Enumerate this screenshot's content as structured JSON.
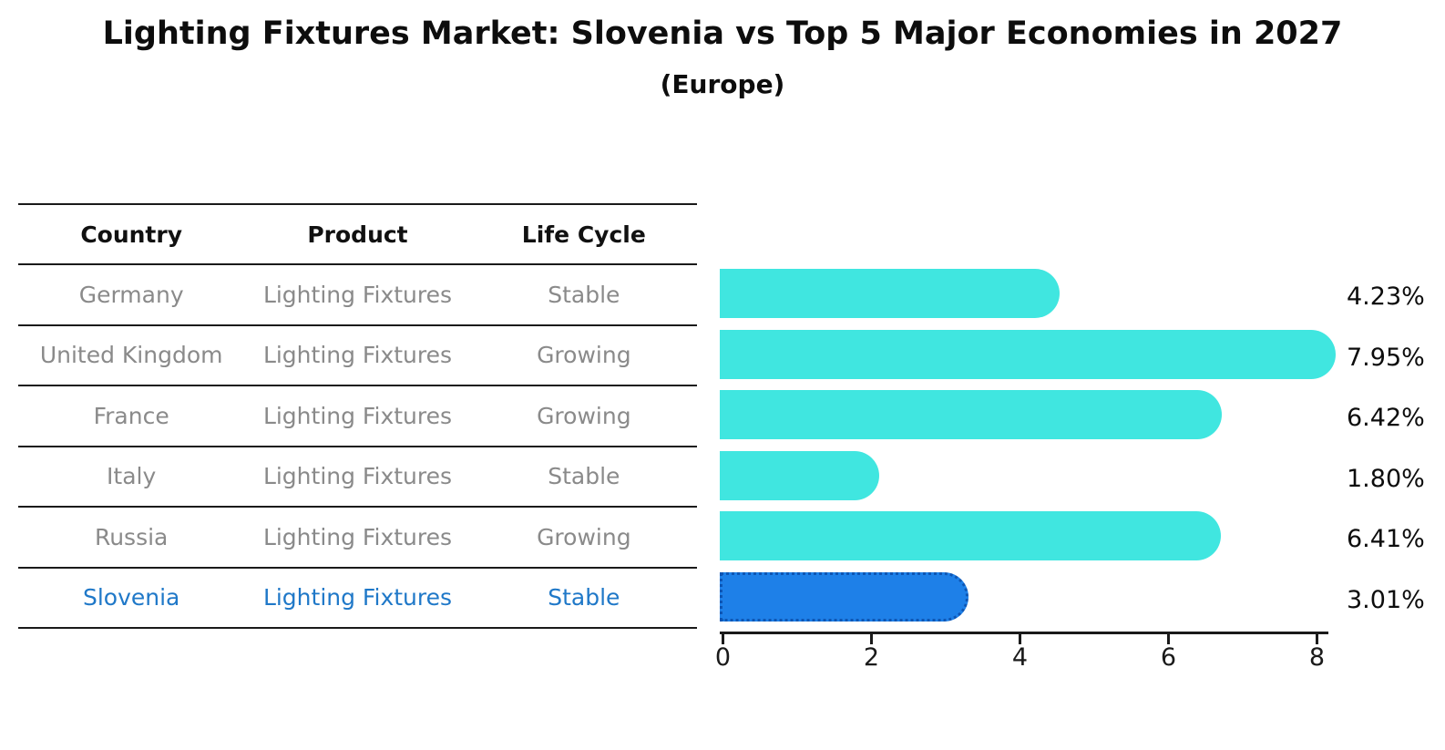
{
  "title": "Lighting Fixtures Market: Slovenia vs Top 5 Major Economies in 2027",
  "subtitle": "(Europe)",
  "table": {
    "headers": [
      "Country",
      "Product",
      "Life Cycle"
    ],
    "rows": [
      {
        "country": "Germany",
        "product": "Lighting Fixtures",
        "life_cycle": "Stable",
        "highlight": false
      },
      {
        "country": "United Kingdom",
        "product": "Lighting Fixtures",
        "life_cycle": "Growing",
        "highlight": false
      },
      {
        "country": "France",
        "product": "Lighting Fixtures",
        "life_cycle": "Growing",
        "highlight": false
      },
      {
        "country": "Italy",
        "product": "Lighting Fixtures",
        "life_cycle": "Stable",
        "highlight": false
      },
      {
        "country": "Russia",
        "product": "Lighting Fixtures",
        "life_cycle": "Growing",
        "highlight": false
      },
      {
        "country": "Slovenia",
        "product": "Lighting Fixtures",
        "life_cycle": "Stable",
        "highlight": true
      }
    ]
  },
  "chart_data": {
    "type": "bar",
    "orientation": "horizontal",
    "title": "Lighting Fixtures Market: Slovenia vs Top 5 Major Economies in 2027",
    "subtitle": "(Europe)",
    "categories": [
      "Germany",
      "United Kingdom",
      "France",
      "Italy",
      "Russia",
      "Slovenia"
    ],
    "values": [
      4.23,
      7.95,
      6.42,
      1.8,
      6.41,
      3.01
    ],
    "value_labels": [
      "4.23%",
      "7.95%",
      "6.42%",
      "1.80%",
      "6.41%",
      "3.01%"
    ],
    "x_ticks": [
      0,
      2,
      4,
      6,
      8
    ],
    "xlim": [
      0,
      8.2
    ],
    "xlabel": "",
    "ylabel": "",
    "grid": false,
    "legend": "none",
    "bar_color": "#40e6e0",
    "highlight_bar_color": "#1e80e8",
    "highlight_index": 5
  },
  "colors": {
    "bar_cyan": "#40e6e0",
    "bar_blue": "#1e80e8",
    "bar_blue_border": "#0e56b4",
    "highlight_text": "#1f78c8",
    "table_text": "#8a8a8a",
    "heading_text": "#111111",
    "line": "#1a1a1a"
  }
}
